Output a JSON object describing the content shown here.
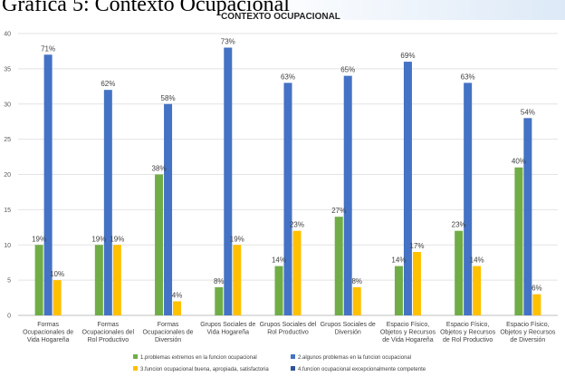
{
  "document": {
    "heading": "Gráfica 5: Contexto Ocupacional"
  },
  "chart_data": {
    "type": "bar",
    "title": "CONTEXTO OCUPACIONAL",
    "xlabel": "",
    "ylabel": "",
    "ylim": [
      0,
      40
    ],
    "yticks": [
      0,
      5,
      10,
      15,
      20,
      25,
      30,
      35,
      40
    ],
    "grid": true,
    "legend_position": "bottom",
    "categories": [
      [
        "Formas",
        "Ocupacionales de",
        "Vida Hogareña"
      ],
      [
        "Formas",
        "Ocupacionales del",
        "Rol Productivo"
      ],
      [
        "Formas",
        "Ocupacionales de",
        "Diversión"
      ],
      [
        "Grupos Sociales de",
        "Vida Hogareña"
      ],
      [
        "Grupos Sociales del",
        "Rol Productivo"
      ],
      [
        "Grupos Sociales de",
        "Diversión"
      ],
      [
        "Espacio Físico,",
        "Objetos y Recursos",
        "de Vida Hogareña"
      ],
      [
        "Espacio Físico,",
        "Objetos y Recursos",
        "de Rol Productivo"
      ],
      [
        "Espacio Físico,",
        "Objetos y Recursos",
        "de Diversión"
      ]
    ],
    "series": [
      {
        "name": "1.problemas extremos en la funcion ocupacional",
        "color": "#70ad47",
        "values": [
          10,
          10,
          20,
          4,
          7,
          14,
          7,
          12,
          21
        ],
        "labels": [
          "19%",
          "19%",
          "38%",
          "8%",
          "14%",
          "27%",
          "14%",
          "23%",
          "40%"
        ]
      },
      {
        "name": "2.algunos problemas en la funcion ocupacional",
        "color": "#4472c4",
        "values": [
          37,
          32,
          30,
          38,
          33,
          34,
          36,
          33,
          28
        ],
        "labels": [
          "71%",
          "62%",
          "58%",
          "73%",
          "63%",
          "65%",
          "69%",
          "63%",
          "54%"
        ]
      },
      {
        "name": "3.funcion ocupacional buena, apropiada, satisfactoria",
        "color": "#ffc000",
        "values": [
          5,
          10,
          2,
          10,
          12,
          4,
          9,
          7,
          3
        ],
        "labels": [
          "10%",
          "19%",
          "4%",
          "19%",
          "23%",
          "8%",
          "17%",
          "14%",
          "6%"
        ]
      },
      {
        "name": "4.funcion ocupacional excepcionalmente competente",
        "color": "#2f5597",
        "values": [
          0,
          0,
          0,
          0,
          0,
          0,
          0,
          0,
          0
        ],
        "labels": [
          "",
          "",
          "",
          "",
          "",
          "",
          "",
          "",
          ""
        ]
      }
    ]
  }
}
